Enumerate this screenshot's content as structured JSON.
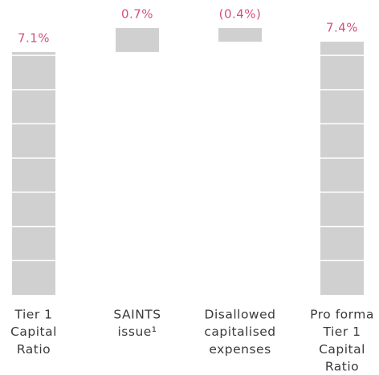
{
  "chart_data": {
    "type": "waterfall",
    "categories": [
      [
        "Tier 1",
        "Capital",
        "Ratio"
      ],
      [
        "SAINTS",
        "issue¹"
      ],
      [
        "Disallowed",
        "capitalised",
        "expenses"
      ],
      [
        "Pro forma",
        "Tier 1",
        "Capital",
        "Ratio"
      ]
    ],
    "values": [
      7.1,
      0.7,
      -0.4,
      7.4
    ],
    "value_labels": [
      "7.1%",
      "0.7%",
      "(0.4%)",
      "7.4%"
    ],
    "measure": [
      "absolute",
      "relative",
      "relative",
      "total"
    ],
    "color": "#d0d0d0",
    "label_color": "#d6507a"
  }
}
